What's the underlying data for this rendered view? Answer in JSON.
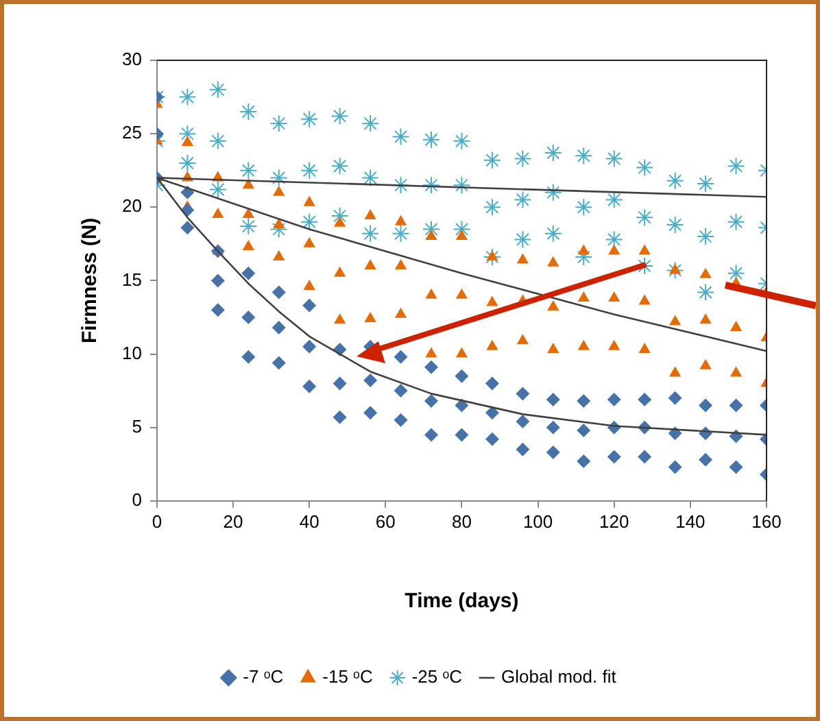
{
  "chart_data": {
    "type": "scatter",
    "xlabel": "Time (days)",
    "ylabel": "Firmness (N)",
    "xlim": [
      0,
      160
    ],
    "xticks": [
      0,
      20,
      40,
      60,
      80,
      100,
      120,
      140,
      160
    ],
    "ylim": [
      0,
      30
    ],
    "yticks": [
      0,
      5,
      10,
      15,
      20,
      25,
      30
    ],
    "grid": false,
    "legend": "bottom",
    "series": [
      {
        "name": "-7 ᵒC",
        "color": "#4672a8",
        "marker": "diamond",
        "x": [
          0,
          0,
          0,
          8,
          8,
          8,
          16,
          16,
          16,
          24,
          24,
          24,
          32,
          32,
          32,
          40,
          40,
          40,
          48,
          48,
          48,
          56,
          56,
          56,
          64,
          64,
          64,
          72,
          72,
          72,
          80,
          80,
          80,
          88,
          88,
          88,
          96,
          96,
          96,
          104,
          104,
          104,
          112,
          112,
          112,
          120,
          120,
          120,
          128,
          128,
          128,
          136,
          136,
          136,
          144,
          144,
          144,
          152,
          152,
          152,
          160,
          160,
          160
        ],
        "values": [
          27.5,
          25,
          22,
          21,
          19.8,
          18.6,
          17,
          15,
          13,
          15.5,
          12.5,
          9.8,
          14.2,
          11.8,
          9.4,
          13.3,
          10.5,
          7.8,
          10.3,
          8,
          5.7,
          10.5,
          8.2,
          6,
          9.8,
          7.5,
          5.5,
          9.1,
          6.8,
          4.5,
          8.5,
          6.5,
          4.5,
          8,
          6,
          4.2,
          7.3,
          5.4,
          3.5,
          6.9,
          5,
          3.3,
          6.8,
          4.8,
          2.7,
          6.9,
          5,
          3,
          6.9,
          5,
          3,
          7,
          4.6,
          2.3,
          6.5,
          4.6,
          2.8,
          6.5,
          4.4,
          2.3,
          6.5,
          4.2,
          1.8
        ]
      },
      {
        "name": "-15 ᵒC",
        "color": "#e36c0a",
        "marker": "triangle",
        "x": [
          0,
          0,
          0,
          8,
          8,
          8,
          16,
          16,
          16,
          24,
          24,
          24,
          32,
          32,
          32,
          40,
          40,
          40,
          48,
          48,
          48,
          56,
          56,
          56,
          64,
          64,
          64,
          72,
          72,
          72,
          80,
          80,
          80,
          88,
          88,
          88,
          96,
          96,
          96,
          104,
          104,
          104,
          112,
          112,
          112,
          120,
          120,
          120,
          128,
          128,
          128,
          136,
          136,
          136,
          144,
          144,
          144,
          152,
          152,
          152,
          160,
          160,
          160
        ],
        "values": [
          27,
          24.5,
          22,
          24.4,
          22,
          20,
          22,
          19.5,
          17,
          21.5,
          19.5,
          17.3,
          21,
          18.8,
          16.6,
          20.3,
          17.5,
          14.6,
          18.9,
          15.5,
          12.3,
          19.4,
          16,
          12.4,
          19,
          16,
          12.7,
          18,
          14,
          10,
          18,
          14,
          10,
          16.6,
          13.5,
          10.5,
          16.4,
          13.6,
          10.9,
          16.2,
          13.2,
          10.3,
          17,
          13.8,
          10.5,
          17,
          13.8,
          10.5,
          17,
          13.6,
          10.3,
          15.7,
          12.2,
          8.7,
          15.4,
          12.3,
          9.2,
          14.8,
          11.8,
          8.7,
          14.2,
          11.1,
          8
        ]
      },
      {
        "name": "-25 ᵒC",
        "color": "#4bacc6",
        "marker": "cross",
        "x": [
          0,
          0,
          0,
          8,
          8,
          8,
          16,
          16,
          16,
          24,
          24,
          24,
          32,
          32,
          32,
          40,
          40,
          40,
          48,
          48,
          48,
          56,
          56,
          56,
          64,
          64,
          64,
          72,
          72,
          72,
          80,
          80,
          80,
          88,
          88,
          88,
          96,
          96,
          96,
          104,
          104,
          104,
          112,
          112,
          112,
          120,
          120,
          120,
          128,
          128,
          128,
          136,
          136,
          136,
          144,
          144,
          144,
          152,
          152,
          152,
          160,
          160,
          160
        ],
        "values": [
          27.5,
          24.5,
          21.5,
          27.5,
          25,
          23,
          28,
          24.5,
          21.2,
          26.5,
          22.5,
          18.7,
          25.7,
          22,
          18.5,
          26,
          22.5,
          19,
          26.2,
          22.8,
          19.4,
          25.7,
          22,
          18.2,
          24.8,
          21.5,
          18.2,
          24.6,
          21.5,
          18.5,
          24.5,
          21.5,
          18.5,
          23.2,
          20,
          16.6,
          23.3,
          20.5,
          17.8,
          23.7,
          21,
          18.2,
          23.5,
          20,
          16.6,
          23.3,
          20.5,
          17.8,
          22.7,
          19.3,
          16,
          21.8,
          18.8,
          15.7,
          21.6,
          18,
          14.2,
          22.8,
          19,
          15.5,
          22.5,
          18.6,
          14.8
        ]
      },
      {
        "name": "Global mod. fit",
        "type": "line",
        "color": "#404040",
        "marker": "none",
        "line_style": "solid",
        "x": [
          0,
          8,
          16,
          24,
          32,
          40,
          56,
          72,
          96,
          120,
          160
        ],
        "values": [
          22,
          19.3,
          17,
          14.8,
          12.9,
          11.2,
          8.8,
          7.3,
          5.9,
          5.1,
          4.5
        ]
      },
      {
        "type": "line",
        "color": "#404040",
        "marker": "none",
        "line_style": "solid",
        "x": [
          0,
          40,
          80,
          120,
          160
        ],
        "values": [
          22,
          18.5,
          15.5,
          12.7,
          10.2
        ]
      },
      {
        "type": "line",
        "color": "#404040",
        "marker": "none",
        "line_style": "solid",
        "x": [
          0,
          160
        ],
        "values": [
          22,
          20.7
        ]
      }
    ]
  }
}
